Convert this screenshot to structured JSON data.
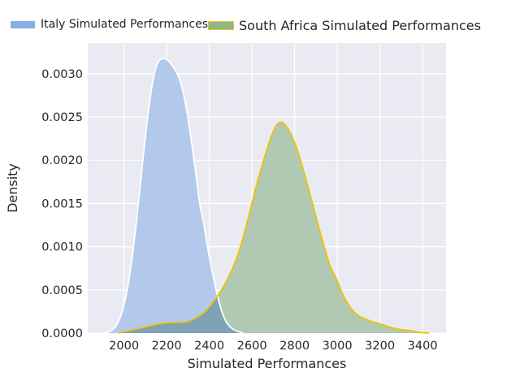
{
  "legend": {
    "items": [
      {
        "label": "Italy Simulated Performances",
        "fill": "#85aee4",
        "edge": "#ffffff"
      },
      {
        "label": "South Africa Simulated Performances",
        "fill": "#8db787",
        "edge": "#eec330"
      }
    ]
  },
  "chart_data": {
    "type": "area",
    "kind": "kde-density",
    "title": "",
    "xlabel": "Simulated Performances",
    "ylabel": "Density",
    "xlim": [
      1830,
      3510
    ],
    "ylim": [
      0,
      0.003355
    ],
    "grid": true,
    "legend_position": "above-plot",
    "plot_bg": "#eaeaf2",
    "grid_color": "#ffffff",
    "tick_color": "#262626",
    "xticks": [
      2000,
      2200,
      2400,
      2600,
      2800,
      3000,
      3200,
      3400
    ],
    "xtick_labels": [
      "2000",
      "2200",
      "2400",
      "2600",
      "2800",
      "3000",
      "3200",
      "3400"
    ],
    "yticks": [
      0,
      0.0005,
      0.001,
      0.0015,
      0.002,
      0.0025,
      0.003
    ],
    "ytick_labels": [
      "0.0000",
      "0.0005",
      "0.0010",
      "0.0015",
      "0.0020",
      "0.0025",
      "0.0030"
    ],
    "overlap_fill_color": "#7fa3b5",
    "series": [
      {
        "name": "Italy Simulated Performances",
        "line_color": "#ffffff",
        "fill_color": "#b3c9ec",
        "peak": {
          "x": 2200,
          "density": 0.00317
        },
        "x": [
          1910,
          1935,
          1955,
          1975,
          1995,
          2015,
          2035,
          2055,
          2075,
          2095,
          2115,
          2135,
          2155,
          2175,
          2195,
          2215,
          2235,
          2255,
          2275,
          2295,
          2315,
          2335,
          2355,
          2375,
          2395,
          2415,
          2435,
          2455,
          2475,
          2495,
          2515,
          2535,
          2560
        ],
        "density": [
          0,
          2e-05,
          6e-05,
          0.00014,
          0.00028,
          0.0005,
          0.00082,
          0.00122,
          0.00168,
          0.00216,
          0.00258,
          0.00291,
          0.00311,
          0.00317,
          0.00317,
          0.00313,
          0.00306,
          0.00297,
          0.00281,
          0.00256,
          0.00224,
          0.00188,
          0.0015,
          0.00125,
          0.00095,
          0.0007,
          0.00047,
          0.00028,
          0.00015,
          8e-05,
          4e-05,
          2e-05,
          0
        ]
      },
      {
        "name": "South Africa Simulated Performances",
        "line_color": "#eec200",
        "fill_color": "#b0c9b2",
        "peak": {
          "x": 2725,
          "density": 0.00244
        },
        "x": [
          1975,
          2010,
          2045,
          2080,
          2115,
          2150,
          2185,
          2220,
          2255,
          2290,
          2325,
          2360,
          2395,
          2430,
          2465,
          2500,
          2530,
          2560,
          2590,
          2620,
          2650,
          2680,
          2705,
          2730,
          2755,
          2785,
          2815,
          2845,
          2875,
          2905,
          2935,
          2965,
          2995,
          3025,
          3055,
          3085,
          3115,
          3145,
          3180,
          3220,
          3260,
          3300,
          3340,
          3380,
          3430
        ],
        "density": [
          0,
          2e-05,
          4e-05,
          6e-05,
          8e-05,
          0.0001,
          0.000115,
          0.00012,
          0.000125,
          0.00013,
          0.00016,
          0.00021,
          0.00029,
          0.0004,
          0.00053,
          0.0007,
          0.00088,
          0.00112,
          0.0014,
          0.0017,
          0.00196,
          0.0022,
          0.00236,
          0.00244,
          0.00241,
          0.00229,
          0.0021,
          0.00185,
          0.00158,
          0.0013,
          0.00103,
          0.00079,
          0.00063,
          0.00045,
          0.00032,
          0.00023,
          0.00018,
          0.00015,
          0.00012,
          9e-05,
          6e-05,
          4e-05,
          3e-05,
          1e-05,
          0
        ]
      }
    ]
  }
}
